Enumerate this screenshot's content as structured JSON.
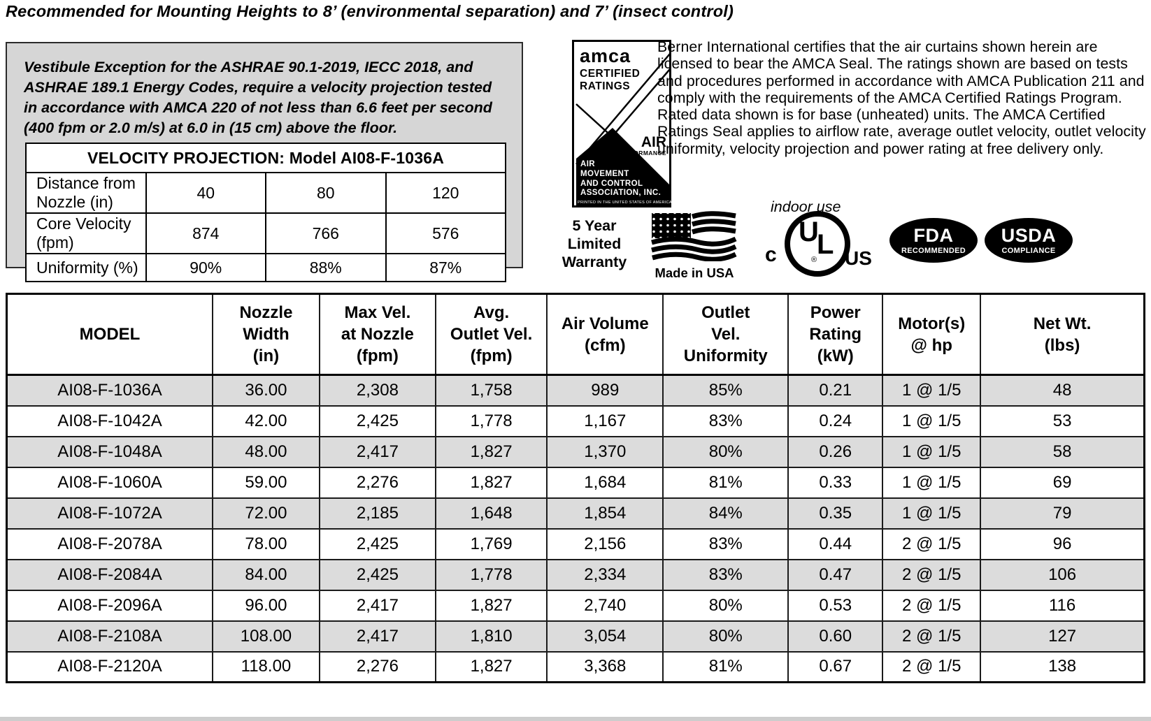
{
  "colors": {
    "note_box_bg": "#d6d6d6",
    "shaded_row": "#dcdcdc",
    "text": "#000000"
  },
  "header": {
    "title": "Recommended for Mounting Heights to 8’ (environmental separation) and 7’ (insect control)"
  },
  "vestibule_note": "Vestibule Exception for the ASHRAE 90.1-2019, IECC 2018, and\nASHRAE 189.1 Energy Codes, require a velocity projection tested\nin accordance with AMCA 220 of not less than 6.6 feet per second\n(400 fpm or 2.0 m/s) at 6.0 in (15 cm) above the floor.",
  "velocity_projection": {
    "title": "VELOCITY PROJECTION: Model AI08-F-1036A",
    "rows": [
      {
        "label": "Distance from Nozzle (in)",
        "values": [
          "40",
          "80",
          "120"
        ]
      },
      {
        "label": "Core Velocity (fpm)",
        "values": [
          "874",
          "766",
          "576"
        ]
      },
      {
        "label": "Uniformity (%)",
        "values": [
          "90%",
          "88%",
          "87%"
        ]
      }
    ]
  },
  "amca_seal": {
    "brand": "amca",
    "certified": "CERTIFIED",
    "ratings": "RATINGS",
    "air": "AIR",
    "performance": "PERFORMANCE",
    "org_lines": "AIR\nMOVEMENT\nAND CONTROL\nASSOCIATION, INC.",
    "printed": "PRINTED IN THE UNITED STATES OF AMERICA"
  },
  "certification_text": "Berner International certifies that the air curtains shown herein are licensed to bear the AMCA Seal.  The ratings shown are based on tests and procedures performed in accordance with AMCA Publication 211 and comply with the requirements of the AMCA Certified Ratings Program.  Rated data shown is for base (unheated) units.  The AMCA Certified Ratings Seal applies to airflow rate, average outlet velocity, outlet velocity uniformity, velocity projection and power rating  at free delivery only.",
  "badges": {
    "warranty": "5 Year\nLimited\nWarranty",
    "made_in_usa": "Made in USA",
    "indoor_use": "indoor use",
    "ul_c": "c",
    "ul_u": "U",
    "ul_l": "L",
    "ul_r": "®",
    "ul_us": "US",
    "fda_title": "FDA",
    "fda_sub": "RECOMMENDED",
    "usda_title": "USDA",
    "usda_sub": "COMPLIANCE"
  },
  "spec_table": {
    "columns": [
      "MODEL",
      "Nozzle\nWidth\n(in)",
      "Max Vel.\nat Nozzle\n(fpm)",
      "Avg.\nOutlet Vel.\n(fpm)",
      "Air Volume\n(cfm)",
      "Outlet\nVel.\nUniformity",
      "Power\nRating\n(kW)",
      "Motor(s)\n@ hp",
      "Net Wt.\n(lbs)"
    ],
    "rows": [
      [
        "AI08-F-1036A",
        "36.00",
        "2,308",
        "1,758",
        "989",
        "85%",
        "0.21",
        "1 @ 1/5",
        "48"
      ],
      [
        "AI08-F-1042A",
        "42.00",
        "2,425",
        "1,778",
        "1,167",
        "83%",
        "0.24",
        "1 @ 1/5",
        "53"
      ],
      [
        "AI08-F-1048A",
        "48.00",
        "2,417",
        "1,827",
        "1,370",
        "80%",
        "0.26",
        "1 @ 1/5",
        "58"
      ],
      [
        "AI08-F-1060A",
        "59.00",
        "2,276",
        "1,827",
        "1,684",
        "81%",
        "0.33",
        "1 @ 1/5",
        "69"
      ],
      [
        "AI08-F-1072A",
        "72.00",
        "2,185",
        "1,648",
        "1,854",
        "84%",
        "0.35",
        "1 @ 1/5",
        "79"
      ],
      [
        "AI08-F-2078A",
        "78.00",
        "2,425",
        "1,769",
        "2,156",
        "83%",
        "0.44",
        "2 @ 1/5",
        "96"
      ],
      [
        "AI08-F-2084A",
        "84.00",
        "2,425",
        "1,778",
        "2,334",
        "83%",
        "0.47",
        "2 @ 1/5",
        "106"
      ],
      [
        "AI08-F-2096A",
        "96.00",
        "2,417",
        "1,827",
        "2,740",
        "80%",
        "0.53",
        "2 @ 1/5",
        "116"
      ],
      [
        "AI08-F-2108A",
        "108.00",
        "2,417",
        "1,810",
        "3,054",
        "80%",
        "0.60",
        "2 @ 1/5",
        "127"
      ],
      [
        "AI08-F-2120A",
        "118.00",
        "2,276",
        "1,827",
        "3,368",
        "81%",
        "0.67",
        "2 @ 1/5",
        "138"
      ]
    ]
  }
}
